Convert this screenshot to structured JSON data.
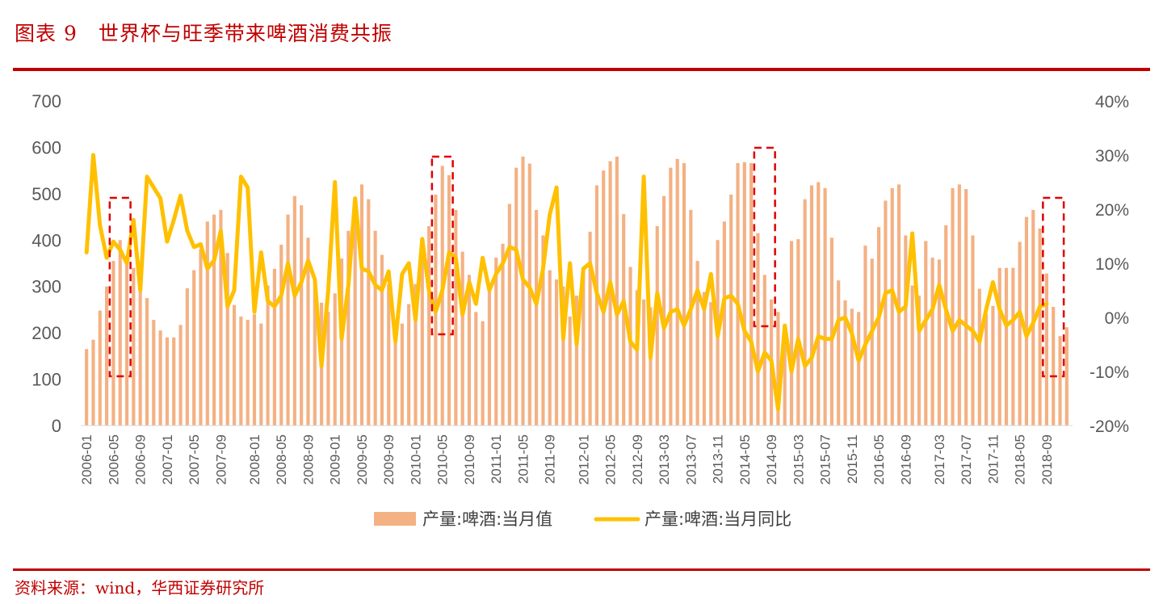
{
  "header": {
    "figure_label": "图表 9",
    "title": "世界杯与旺季带来啤酒消费共振"
  },
  "footer": {
    "source": "资料来源：wind，华西证券研究所"
  },
  "colors": {
    "brand_red": "#c00000",
    "bar": "#f4b183",
    "line": "#ffc000",
    "highlight_box": "#e00000"
  },
  "chart_data": {
    "type": "bar+line",
    "title": "",
    "xlabel": "",
    "ylabel": "",
    "ylim": [
      0,
      700
    ],
    "y2lim": [
      -20,
      40
    ],
    "y_ticks": [
      "0",
      "100",
      "200",
      "300",
      "400",
      "500",
      "600",
      "700"
    ],
    "y2_ticks": [
      "-20%",
      "-10%",
      "0%",
      "10%",
      "20%",
      "30%",
      "40%"
    ],
    "x_tick_labels": [
      "2006-01",
      "2006-05",
      "2006-09",
      "2007-01",
      "2007-05",
      "2007-09",
      "2008-01",
      "2008-05",
      "2008-09",
      "2009-01",
      "2009-05",
      "2009-09",
      "2010-01",
      "2010-05",
      "2010-09",
      "2011-01",
      "2011-05",
      "2011-09",
      "2012-01",
      "2012-05",
      "2012-09",
      "2013-03",
      "2013-07",
      "2013-11",
      "2014-05",
      "2014-09",
      "2015-03",
      "2015-07",
      "2015-11",
      "2016-05",
      "2016-09",
      "2017-03",
      "2017-07",
      "2017-11",
      "2018-05",
      "2018-09"
    ],
    "grid": false,
    "legend_position": "bottom",
    "series": [
      {
        "name": "产量:啤酒:当月值",
        "type": "bar",
        "axis": "left",
        "values": [
          165,
          185,
          248,
          300,
          355,
          400,
          365,
          340,
          305,
          275,
          228,
          205,
          190,
          190,
          217,
          296,
          335,
          380,
          440,
          455,
          465,
          372,
          260,
          235,
          228,
          240,
          220,
          302,
          338,
          390,
          455,
          495,
          475,
          405,
          310,
          265,
          245,
          285,
          360,
          420,
          490,
          520,
          488,
          420,
          368,
          305,
          200,
          220,
          262,
          305,
          370,
          430,
          498,
          560,
          540,
          465,
          375,
          325,
          245,
          225,
          305,
          362,
          392,
          478,
          556,
          580,
          565,
          465,
          410,
          335,
          315,
          300,
          235,
          280,
          338,
          418,
          518,
          550,
          570,
          580,
          456,
          342,
          292,
          272,
          255,
          430,
          495,
          556,
          575,
          566,
          465,
          355,
          288,
          266,
          400,
          440,
          498,
          566,
          568,
          566,
          415,
          325,
          272,
          245,
          195,
          398,
          402,
          488,
          518,
          525,
          512,
          405,
          313,
          270,
          252,
          245,
          388,
          360,
          428,
          485,
          512,
          520,
          410,
          302,
          280,
          398,
          362,
          358,
          432,
          512,
          520,
          510,
          410,
          295,
          240,
          258,
          340,
          340,
          340,
          396,
          450,
          465,
          425,
          328,
          256,
          193,
          212
        ]
      },
      {
        "name": "产量:啤酒:当月同比",
        "type": "line",
        "axis": "right",
        "values": [
          12,
          30,
          17,
          11,
          14,
          12.5,
          10,
          18,
          5,
          26,
          24,
          22,
          14,
          18,
          22.5,
          16,
          13,
          13.5,
          9,
          10.5,
          16,
          2,
          5,
          26,
          24,
          1,
          12,
          3,
          2,
          4,
          10,
          4,
          6.5,
          10.5,
          7,
          -9,
          5,
          25,
          -4,
          6,
          22,
          9,
          8.5,
          6,
          5,
          8.5,
          -4.5,
          8,
          10,
          -0.5,
          14.5,
          5,
          1,
          5,
          12,
          11,
          0.5,
          6.5,
          2.5,
          11,
          5,
          8,
          10,
          13,
          12.5,
          7,
          5.5,
          2.5,
          9,
          19,
          24,
          -4,
          10,
          -5,
          9,
          10,
          4.5,
          1,
          6.5,
          0.5,
          3,
          -4.5,
          -6,
          26,
          -7.5,
          4.5,
          -2,
          1,
          1.5,
          -1.5,
          1.5,
          5,
          1.5,
          8,
          -3.5,
          3.5,
          4,
          2.5,
          -2.5,
          -4.5,
          -10,
          -6.5,
          -8,
          -17,
          -1.5,
          -10,
          -4,
          -9,
          -7.5,
          -3.5,
          -4,
          -4,
          -0.5,
          0,
          -3,
          -8,
          -5,
          -2.5,
          0,
          4.5,
          5,
          1,
          2,
          15.5,
          -2.5,
          -0.5,
          1.5,
          6,
          1.5,
          -2.5,
          -0.5,
          -1.5,
          -2.5,
          -4.5,
          1.5,
          6.5,
          1.5,
          -1.5,
          -0.5,
          1,
          -3.5,
          -1,
          2,
          2.5
        ]
      }
    ],
    "highlight_periods": [
      "2006-05 ~ 2006-07",
      "2010-05 ~ 2010-07",
      "2014-05 ~ 2014-07",
      "2018-05 ~ 2018-07"
    ],
    "legend": [
      {
        "label": "产量:啤酒:当月值",
        "kind": "bar"
      },
      {
        "label": "产量:啤酒:当月同比",
        "kind": "line"
      }
    ]
  }
}
